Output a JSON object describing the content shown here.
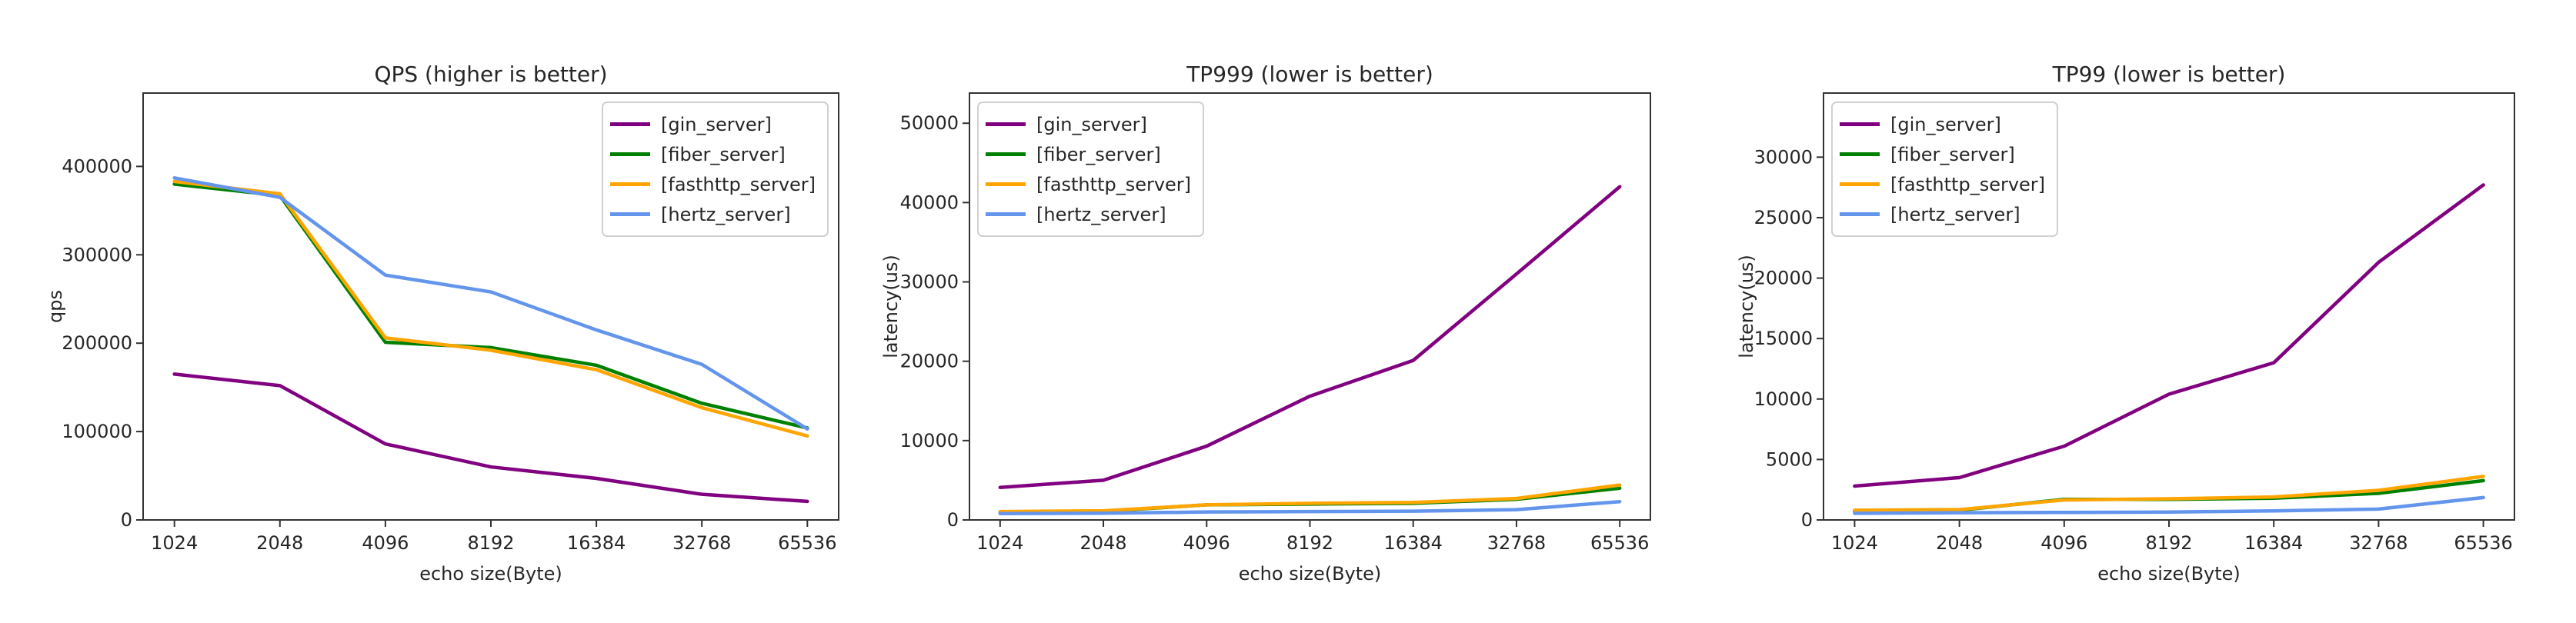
{
  "figure": {
    "background": "#ffffff",
    "text_color": "#262626",
    "spine_color": "#333333"
  },
  "chart_data": [
    {
      "type": "line",
      "title": "QPS (higher is better)",
      "xlabel": "echo size(Byte)",
      "ylabel": "qps",
      "categories": [
        "1024",
        "2048",
        "4096",
        "8192",
        "16384",
        "32768",
        "65536"
      ],
      "yticks": [
        0,
        100000,
        200000,
        300000,
        400000
      ],
      "ylim": [
        0,
        483000
      ],
      "grid": false,
      "legend_position": "upper-right",
      "series": [
        {
          "name": "[gin_server]",
          "color": "#800080",
          "values": [
            165000,
            152000,
            86000,
            60000,
            47000,
            29000,
            21000
          ]
        },
        {
          "name": "[fiber_server]",
          "color": "#008000",
          "values": [
            380000,
            367000,
            201000,
            195000,
            175000,
            132000,
            104000
          ]
        },
        {
          "name": "[fasthttp_server]",
          "color": "#FFA500",
          "values": [
            383000,
            369000,
            206000,
            192000,
            170000,
            127000,
            95000
          ]
        },
        {
          "name": "[hertz_server]",
          "color": "#6495ED",
          "values": [
            387000,
            365000,
            277000,
            258000,
            215000,
            176000,
            103000
          ]
        }
      ]
    },
    {
      "type": "line",
      "title": "TP999 (lower is better)",
      "xlabel": "echo size(Byte)",
      "ylabel": "latency(us)",
      "categories": [
        "1024",
        "2048",
        "4096",
        "8192",
        "16384",
        "32768",
        "65536"
      ],
      "yticks": [
        0,
        10000,
        20000,
        30000,
        40000,
        50000
      ],
      "ylim": [
        0,
        53800
      ],
      "grid": false,
      "legend_position": "upper-left",
      "series": [
        {
          "name": "[gin_server]",
          "color": "#800080",
          "values": [
            4100,
            5000,
            9300,
            15600,
            20100,
            31000,
            42000
          ]
        },
        {
          "name": "[fiber_server]",
          "color": "#008000",
          "values": [
            1000,
            1100,
            1900,
            2000,
            2100,
            2600,
            4000
          ]
        },
        {
          "name": "[fasthttp_server]",
          "color": "#FFA500",
          "values": [
            1050,
            1150,
            1900,
            2100,
            2200,
            2700,
            4400
          ]
        },
        {
          "name": "[hertz_server]",
          "color": "#6495ED",
          "values": [
            800,
            850,
            1000,
            1050,
            1100,
            1300,
            2300
          ]
        }
      ]
    },
    {
      "type": "line",
      "title": "TP99 (lower is better)",
      "xlabel": "echo size(Byte)",
      "ylabel": "latency(us)",
      "categories": [
        "1024",
        "2048",
        "4096",
        "8192",
        "16384",
        "32768",
        "65536"
      ],
      "yticks": [
        0,
        5000,
        10000,
        15000,
        20000,
        25000,
        30000
      ],
      "ylim": [
        0,
        35300
      ],
      "grid": false,
      "legend_position": "upper-left",
      "series": [
        {
          "name": "[gin_server]",
          "color": "#800080",
          "values": [
            2800,
            3500,
            6100,
            10400,
            13000,
            21300,
            27700
          ]
        },
        {
          "name": "[fiber_server]",
          "color": "#008000",
          "values": [
            700,
            800,
            1700,
            1700,
            1800,
            2200,
            3250
          ]
        },
        {
          "name": "[fasthttp_server]",
          "color": "#FFA500",
          "values": [
            800,
            850,
            1650,
            1750,
            1900,
            2450,
            3600
          ]
        },
        {
          "name": "[hertz_server]",
          "color": "#6495ED",
          "values": [
            550,
            600,
            620,
            650,
            750,
            900,
            1850
          ]
        }
      ]
    }
  ]
}
